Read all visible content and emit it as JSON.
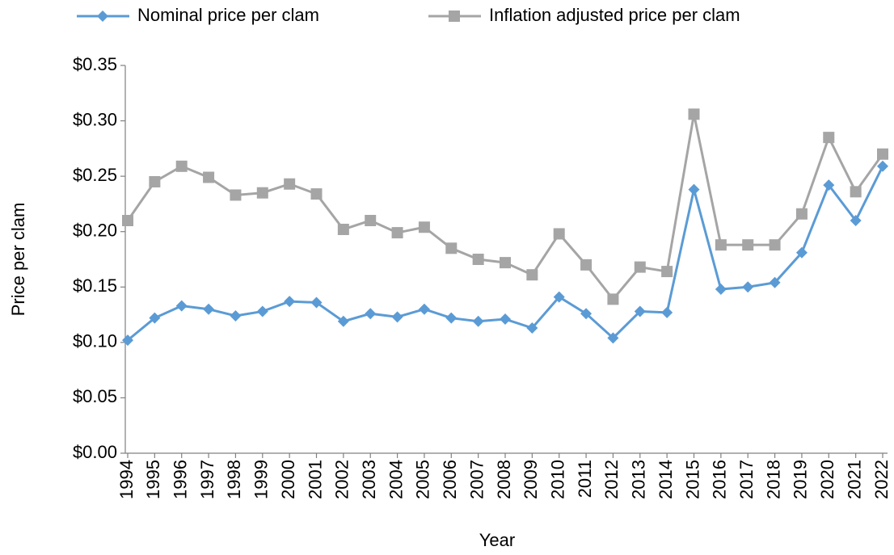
{
  "chart_data": {
    "type": "line",
    "x_label": "Year",
    "y_label": "Price per clam",
    "categories": [
      "1994",
      "1995",
      "1996",
      "1997",
      "1998",
      "1999",
      "2000",
      "2001",
      "2002",
      "2003",
      "2004",
      "2005",
      "2006",
      "2007",
      "2008",
      "2009",
      "2010",
      "2011",
      "2012",
      "2013",
      "2014",
      "2015",
      "2016",
      "2017",
      "2018",
      "2019",
      "2020",
      "2021",
      "2022"
    ],
    "series": [
      {
        "name": "Nominal price per clam",
        "color": "#5b9bd5",
        "marker": "diamond",
        "values": [
          0.102,
          0.122,
          0.133,
          0.13,
          0.124,
          0.128,
          0.137,
          0.136,
          0.119,
          0.126,
          0.123,
          0.13,
          0.122,
          0.119,
          0.121,
          0.113,
          0.141,
          0.126,
          0.104,
          0.128,
          0.127,
          0.238,
          0.148,
          0.15,
          0.154,
          0.181,
          0.242,
          0.21,
          0.259
        ]
      },
      {
        "name": "Inflation adjusted price per clam",
        "color": "#a5a5a5",
        "marker": "square",
        "values": [
          0.21,
          0.245,
          0.259,
          0.249,
          0.233,
          0.235,
          0.243,
          0.234,
          0.202,
          0.21,
          0.199,
          0.204,
          0.185,
          0.175,
          0.172,
          0.161,
          0.198,
          0.17,
          0.139,
          0.168,
          0.164,
          0.306,
          0.188,
          0.188,
          0.188,
          0.216,
          0.285,
          0.236,
          0.27
        ]
      }
    ],
    "ylim": [
      0,
      0.35
    ],
    "yticks": [
      {
        "value": 0,
        "label": "$0.00"
      },
      {
        "value": 0.05,
        "label": "$0.05"
      },
      {
        "value": 0.1,
        "label": "$0.10"
      },
      {
        "value": 0.15,
        "label": "$0.15"
      },
      {
        "value": 0.2,
        "label": "$0.20"
      },
      {
        "value": 0.25,
        "label": "$0.25"
      },
      {
        "value": 0.3,
        "label": "$0.30"
      },
      {
        "value": 0.35,
        "label": "$0.35"
      }
    ],
    "grid": false,
    "legend": "top"
  }
}
